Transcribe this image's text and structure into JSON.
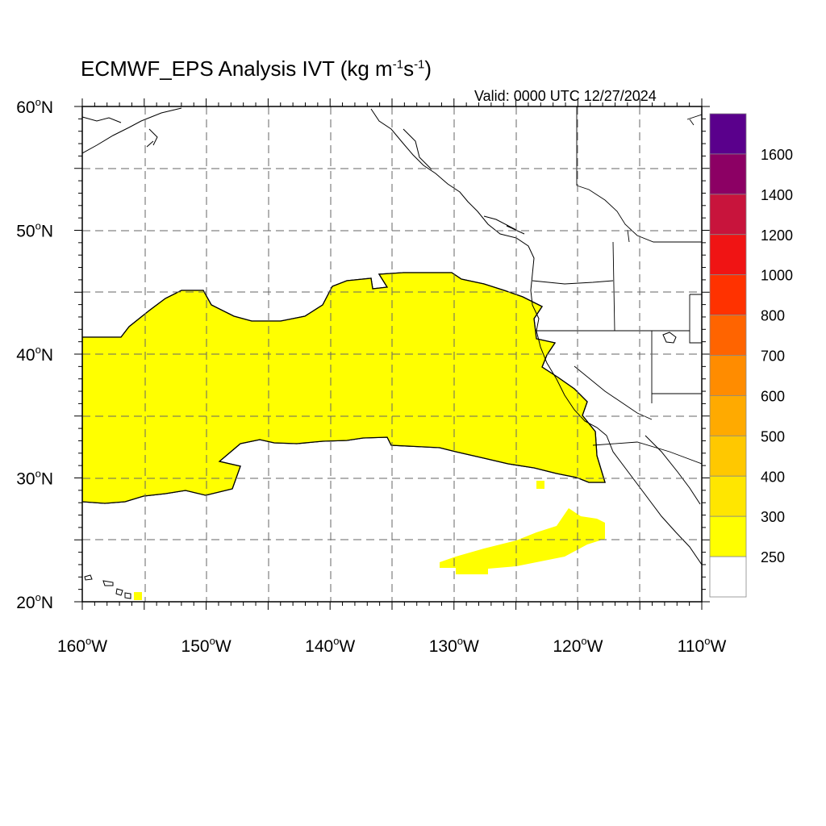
{
  "title": {
    "main": "ECMWF_EPS Analysis IVT (kg m",
    "exp1": "-1",
    "mid": "s",
    "exp2": "-1",
    "end": ")"
  },
  "valid_text": "Valid: 0000 UTC 12/27/2024",
  "map": {
    "lat_range": [
      20,
      60
    ],
    "lon_range": [
      -160,
      -110
    ],
    "lat_ticks": [
      {
        "value": 60,
        "label": "60",
        "suffix": "N"
      },
      {
        "value": 50,
        "label": "50",
        "suffix": "N"
      },
      {
        "value": 40,
        "label": "40",
        "suffix": "N"
      },
      {
        "value": 30,
        "label": "30",
        "suffix": "N"
      },
      {
        "value": 20,
        "label": "20",
        "suffix": "N"
      }
    ],
    "lon_ticks": [
      {
        "value": -160,
        "label": "160",
        "suffix": "W"
      },
      {
        "value": -150,
        "label": "150",
        "suffix": "W"
      },
      {
        "value": -140,
        "label": "140",
        "suffix": "W"
      },
      {
        "value": -130,
        "label": "130",
        "suffix": "W"
      },
      {
        "value": -120,
        "label": "120",
        "suffix": "W"
      },
      {
        "value": -110,
        "label": "110",
        "suffix": "W"
      }
    ],
    "gridlines": "dashed"
  },
  "colorbar": {
    "labels": [
      "250",
      "300",
      "400",
      "500",
      "600",
      "700",
      "800",
      "1000",
      "1200",
      "1400",
      "1600"
    ],
    "colors": [
      "#ffffff",
      "#ffff00",
      "#ffe600",
      "#ffc800",
      "#ffaa00",
      "#ff8c00",
      "#ff6400",
      "#ff3200",
      "#f01414",
      "#c8143c",
      "#8c0064",
      "#5a008c"
    ]
  },
  "colors": {
    "c250": "#ffff00",
    "c300": "#ffe600",
    "c400": "#ffc800",
    "c500": "#ffaa00",
    "c600": "#ff8c00",
    "c700": "#ff6400",
    "c800": "#ff3200",
    "c1000": "#f01414",
    "c1200": "#c8143c",
    "c1400": "#8c0064"
  }
}
